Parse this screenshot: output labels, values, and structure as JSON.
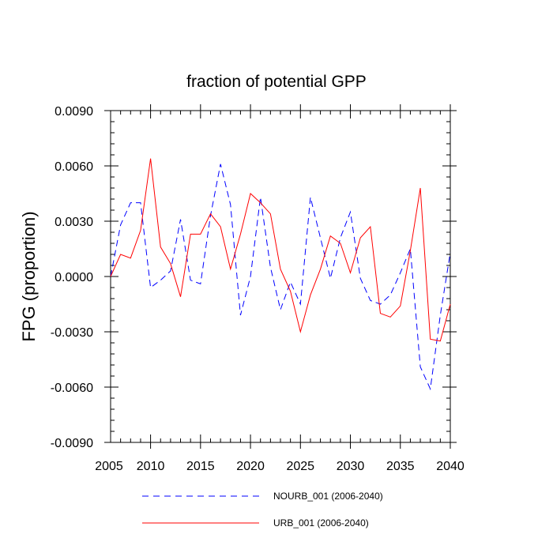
{
  "chart_data": {
    "type": "line",
    "title": "fraction of potential GPP",
    "xlabel": "",
    "ylabel": "FPG  (proportion)",
    "xlim": [
      2006,
      2040
    ],
    "ylim": [
      -0.009,
      0.009
    ],
    "xticks": [
      2005,
      2010,
      2015,
      2020,
      2025,
      2030,
      2035,
      2040
    ],
    "xtick_labels": [
      "2005",
      "2010",
      "2015",
      "2020",
      "2025",
      "2030",
      "2035",
      "2040"
    ],
    "yticks": [
      0.009,
      0.006,
      0.003,
      0.0,
      -0.003,
      -0.006,
      -0.009
    ],
    "ytick_labels": [
      "0.0090",
      "0.0060",
      "0.0030",
      "0.0000",
      "-0.0030",
      "-0.0060",
      "-0.0090"
    ],
    "grid": false,
    "legend_position": "bottom",
    "x": [
      2006,
      2007,
      2008,
      2009,
      2010,
      2011,
      2012,
      2013,
      2014,
      2015,
      2016,
      2017,
      2018,
      2019,
      2020,
      2021,
      2022,
      2023,
      2024,
      2025,
      2026,
      2027,
      2028,
      2029,
      2030,
      2031,
      2032,
      2033,
      2034,
      2035,
      2036,
      2037,
      2038,
      2039,
      2040
    ],
    "series": [
      {
        "name": "NOURB_001 (2006-2040)",
        "color": "#0000ff",
        "style": "dashed",
        "values": [
          0.0,
          0.0028,
          0.004,
          0.004,
          -0.0006,
          -0.0002,
          0.0003,
          0.0031,
          -0.0002,
          -0.0004,
          0.0033,
          0.0061,
          0.0039,
          -0.0021,
          0.0,
          0.0043,
          0.0005,
          -0.0018,
          -0.0003,
          -0.0015,
          0.0043,
          0.0021,
          -0.0001,
          0.0021,
          0.0035,
          -0.0001,
          -0.0013,
          -0.0015,
          -0.001,
          0.0002,
          0.0015,
          -0.0049,
          -0.0061,
          -0.0021,
          0.0013
        ]
      },
      {
        "name": "URB_001 (2006-2040)",
        "color": "#ff0000",
        "style": "solid",
        "values": [
          0.0,
          0.0012,
          0.001,
          0.0025,
          0.0064,
          0.0016,
          0.0007,
          -0.0011,
          0.0023,
          0.0023,
          0.0034,
          0.0027,
          0.0004,
          0.0023,
          0.0045,
          0.004,
          0.0034,
          0.0004,
          -0.0008,
          -0.003,
          -0.001,
          0.0004,
          0.0022,
          0.0018,
          0.0002,
          0.0021,
          0.0027,
          -0.002,
          -0.0022,
          -0.0016,
          0.0014,
          0.0048,
          -0.0034,
          -0.0035,
          -0.0015
        ]
      }
    ]
  }
}
